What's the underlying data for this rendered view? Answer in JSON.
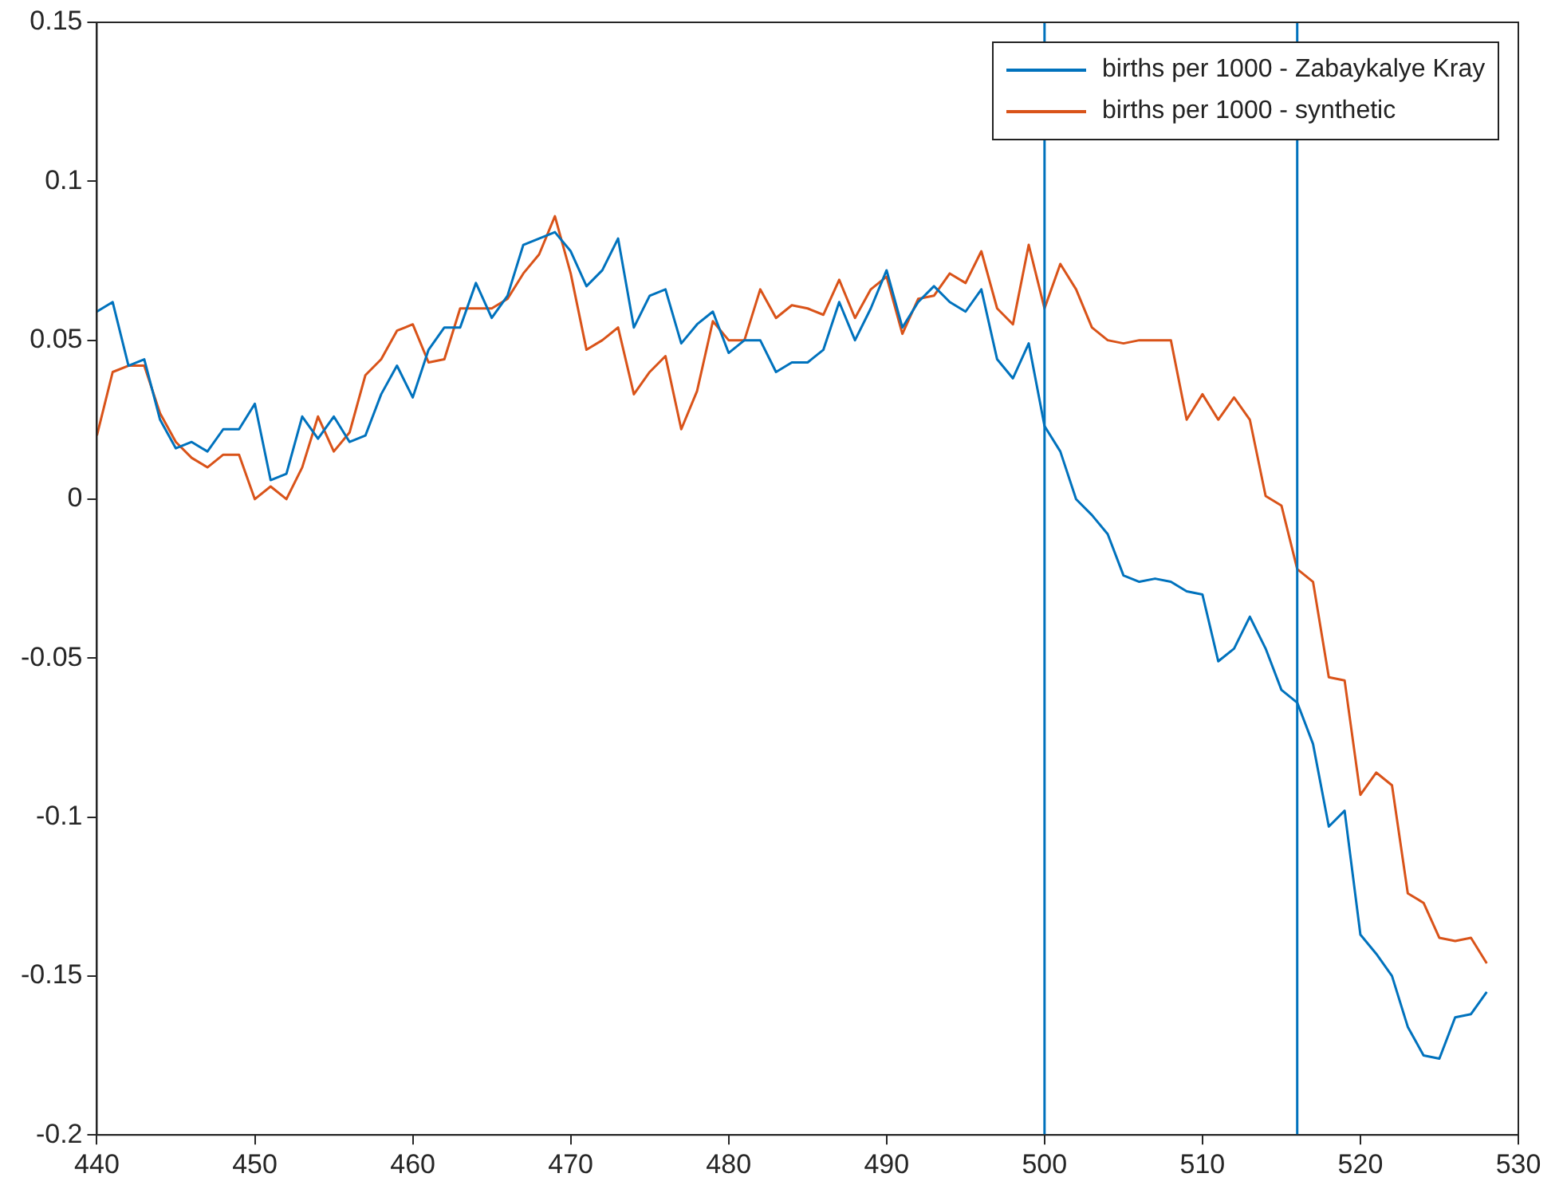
{
  "chart_data": {
    "type": "line",
    "x": [
      440,
      441,
      442,
      443,
      444,
      445,
      446,
      447,
      448,
      449,
      450,
      451,
      452,
      453,
      454,
      455,
      456,
      457,
      458,
      459,
      460,
      461,
      462,
      463,
      464,
      465,
      466,
      467,
      468,
      469,
      470,
      471,
      472,
      473,
      474,
      475,
      476,
      477,
      478,
      479,
      480,
      481,
      482,
      483,
      484,
      485,
      486,
      487,
      488,
      489,
      490,
      491,
      492,
      493,
      494,
      495,
      496,
      497,
      498,
      499,
      500,
      501,
      502,
      503,
      504,
      505,
      506,
      507,
      508,
      509,
      510,
      511,
      512,
      513,
      514,
      515,
      516,
      517,
      518,
      519,
      520,
      521,
      522,
      523,
      524,
      525,
      526,
      527,
      528
    ],
    "series": [
      {
        "name": "births per 1000 - Zabaykalye Kray",
        "color": "#0072bd",
        "values": [
          0.059,
          0.062,
          0.042,
          0.044,
          0.025,
          0.016,
          0.018,
          0.015,
          0.022,
          0.022,
          0.03,
          0.006,
          0.008,
          0.026,
          0.019,
          0.026,
          0.018,
          0.02,
          0.033,
          0.042,
          0.032,
          0.047,
          0.054,
          0.054,
          0.068,
          0.057,
          0.064,
          0.08,
          0.082,
          0.084,
          0.078,
          0.067,
          0.072,
          0.082,
          0.054,
          0.064,
          0.066,
          0.049,
          0.055,
          0.059,
          0.046,
          0.05,
          0.05,
          0.04,
          0.043,
          0.043,
          0.047,
          0.062,
          0.05,
          0.06,
          0.072,
          0.054,
          0.062,
          0.067,
          0.062,
          0.059,
          0.066,
          0.044,
          0.038,
          0.049,
          0.023,
          0.015,
          0.0,
          -0.005,
          -0.011,
          -0.024,
          -0.026,
          -0.025,
          -0.026,
          -0.029,
          -0.03,
          -0.051,
          -0.047,
          -0.037,
          -0.047,
          -0.06,
          -0.064,
          -0.077,
          -0.103,
          -0.098,
          -0.137,
          -0.143,
          -0.15,
          -0.166,
          -0.175,
          -0.176,
          -0.163,
          -0.162,
          -0.155
        ]
      },
      {
        "name": "births per 1000 - synthetic",
        "color": "#d95319",
        "values": [
          0.02,
          0.04,
          0.042,
          0.042,
          0.027,
          0.018,
          0.013,
          0.01,
          0.014,
          0.014,
          0.0,
          0.004,
          0.0,
          0.01,
          0.026,
          0.015,
          0.021,
          0.039,
          0.044,
          0.053,
          0.055,
          0.043,
          0.044,
          0.06,
          0.06,
          0.06,
          0.063,
          0.071,
          0.077,
          0.089,
          0.071,
          0.047,
          0.05,
          0.054,
          0.033,
          0.04,
          0.045,
          0.022,
          0.034,
          0.056,
          0.05,
          0.05,
          0.066,
          0.057,
          0.061,
          0.06,
          0.058,
          0.069,
          0.057,
          0.066,
          0.07,
          0.052,
          0.063,
          0.064,
          0.071,
          0.068,
          0.078,
          0.06,
          0.055,
          0.08,
          0.06,
          0.074,
          0.066,
          0.054,
          0.05,
          0.049,
          0.05,
          0.05,
          0.05,
          0.025,
          0.033,
          0.025,
          0.032,
          0.025,
          0.001,
          -0.002,
          -0.022,
          -0.026,
          -0.056,
          -0.057,
          -0.093,
          -0.086,
          -0.09,
          -0.124,
          -0.127,
          -0.138,
          -0.139,
          -0.138,
          -0.146
        ]
      }
    ],
    "xlim": [
      440,
      530
    ],
    "xticks": [
      440,
      450,
      460,
      470,
      480,
      490,
      500,
      510,
      520,
      530
    ],
    "ylim": [
      -0.2,
      0.15
    ],
    "yticks": [
      -0.2,
      -0.15,
      -0.1,
      -0.05,
      0,
      0.05,
      0.1,
      0.15
    ],
    "ref_lines": [
      {
        "axis": "x",
        "value": 500,
        "color": "#0072bd"
      },
      {
        "axis": "x",
        "value": 516,
        "color": "#0072bd"
      }
    ],
    "grid": false,
    "legend": "top right",
    "marker": "none",
    "line_style": "solid"
  }
}
